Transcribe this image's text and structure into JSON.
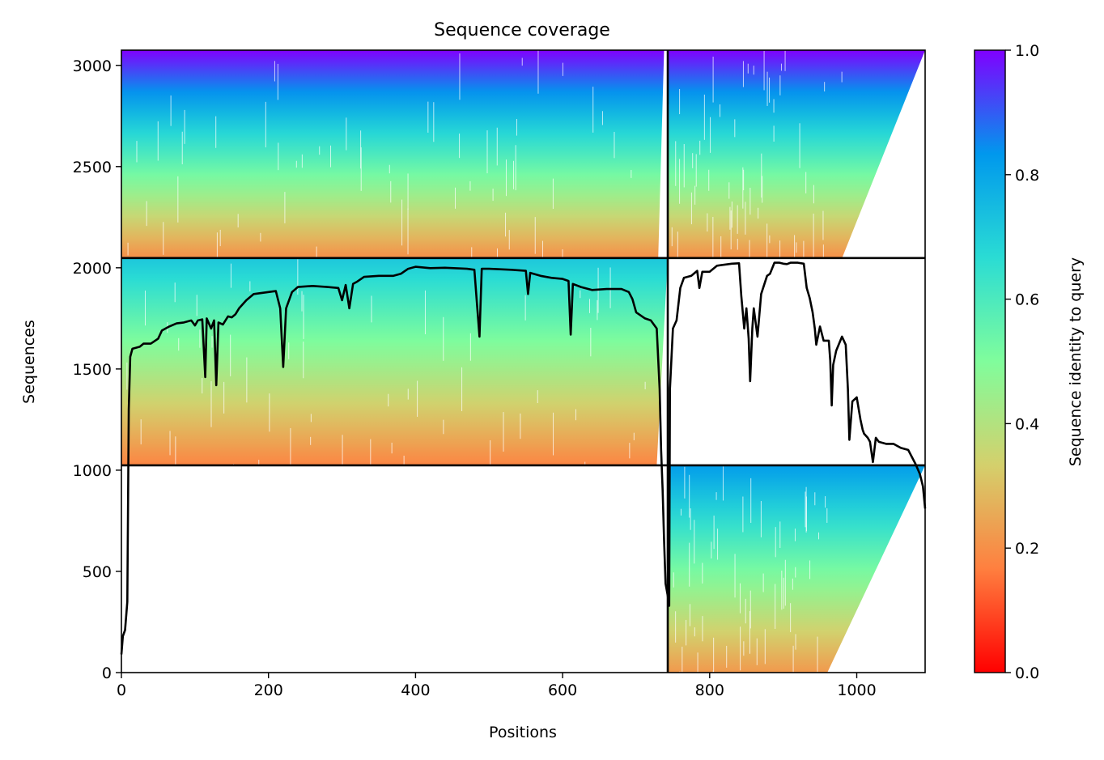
{
  "chart_data": {
    "type": "heatmap",
    "title": "Sequence coverage",
    "xlabel": "Positions",
    "ylabel": "Sequences",
    "xlim": [
      0,
      1093
    ],
    "ylim": [
      0,
      3075
    ],
    "xticks": [
      0,
      200,
      400,
      600,
      800,
      1000
    ],
    "yticks": [
      0,
      500,
      1000,
      1500,
      2000,
      2500,
      3000
    ],
    "colorbar": {
      "label": "Sequence identity to query",
      "range": [
        0.0,
        1.0
      ],
      "ticks": [
        0.0,
        0.2,
        0.4,
        0.6,
        0.8,
        1.0
      ],
      "colormap": "rainbow_r",
      "colors": [
        "#ff0000",
        "#ff7f3f",
        "#d4d06c",
        "#80fd9c",
        "#2adcd4",
        "#0098ed",
        "#8000ff"
      ]
    },
    "grid": false,
    "blocks": [
      {
        "x": [
          0,
          743
        ],
        "y": [
          2048,
          3075
        ],
        "identity_top": 1.0,
        "identity_bottom": 0.2,
        "right_edge_top": 738,
        "right_edge_bottom": 730
      },
      {
        "x": [
          743,
          1093
        ],
        "y": [
          2048,
          3075
        ],
        "identity_top": 1.0,
        "identity_bottom": 0.2,
        "right_edge_top": 1093,
        "right_edge_bottom": 980
      },
      {
        "x": [
          0,
          743
        ],
        "y": [
          1024,
          2048
        ],
        "identity_top": 0.72,
        "identity_bottom": 0.18,
        "right_edge_top": 743,
        "right_edge_bottom": 728
      },
      {
        "x": [
          743,
          1093
        ],
        "y": [
          0,
          1024
        ],
        "identity_top": 0.82,
        "identity_bottom": 0.22,
        "right_edge_top": 1093,
        "right_edge_bottom": 960
      }
    ],
    "dividers": {
      "x": [
        743
      ],
      "y": [
        1024,
        2048
      ]
    },
    "coverage_line": {
      "name": "coverage",
      "color": "#000000",
      "points": [
        [
          0,
          90
        ],
        [
          2,
          180
        ],
        [
          5,
          210
        ],
        [
          8,
          350
        ],
        [
          10,
          1300
        ],
        [
          12,
          1560
        ],
        [
          15,
          1600
        ],
        [
          25,
          1610
        ],
        [
          30,
          1625
        ],
        [
          40,
          1625
        ],
        [
          50,
          1650
        ],
        [
          55,
          1690
        ],
        [
          65,
          1710
        ],
        [
          75,
          1725
        ],
        [
          85,
          1730
        ],
        [
          95,
          1740
        ],
        [
          100,
          1715
        ],
        [
          104,
          1740
        ],
        [
          110,
          1745
        ],
        [
          114,
          1460
        ],
        [
          116,
          1750
        ],
        [
          122,
          1700
        ],
        [
          126,
          1740
        ],
        [
          129,
          1420
        ],
        [
          132,
          1730
        ],
        [
          138,
          1720
        ],
        [
          145,
          1760
        ],
        [
          150,
          1755
        ],
        [
          155,
          1770
        ],
        [
          160,
          1800
        ],
        [
          170,
          1840
        ],
        [
          180,
          1870
        ],
        [
          190,
          1875
        ],
        [
          200,
          1880
        ],
        [
          210,
          1885
        ],
        [
          216,
          1800
        ],
        [
          220,
          1510
        ],
        [
          224,
          1800
        ],
        [
          232,
          1880
        ],
        [
          240,
          1905
        ],
        [
          260,
          1910
        ],
        [
          280,
          1905
        ],
        [
          295,
          1900
        ],
        [
          300,
          1840
        ],
        [
          305,
          1915
        ],
        [
          310,
          1800
        ],
        [
          315,
          1920
        ],
        [
          320,
          1930
        ],
        [
          330,
          1955
        ],
        [
          350,
          1960
        ],
        [
          370,
          1960
        ],
        [
          380,
          1970
        ],
        [
          390,
          1995
        ],
        [
          400,
          2005
        ],
        [
          420,
          1998
        ],
        [
          440,
          2000
        ],
        [
          470,
          1995
        ],
        [
          480,
          1990
        ],
        [
          487,
          1660
        ],
        [
          490,
          1995
        ],
        [
          500,
          1995
        ],
        [
          530,
          1990
        ],
        [
          550,
          1985
        ],
        [
          553,
          1870
        ],
        [
          556,
          1975
        ],
        [
          570,
          1960
        ],
        [
          585,
          1950
        ],
        [
          600,
          1945
        ],
        [
          608,
          1935
        ],
        [
          611,
          1670
        ],
        [
          614,
          1920
        ],
        [
          625,
          1905
        ],
        [
          640,
          1890
        ],
        [
          660,
          1895
        ],
        [
          680,
          1895
        ],
        [
          690,
          1880
        ],
        [
          695,
          1845
        ],
        [
          700,
          1780
        ],
        [
          712,
          1750
        ],
        [
          720,
          1740
        ],
        [
          728,
          1700
        ],
        [
          732,
          1400
        ],
        [
          734,
          1100
        ],
        [
          736,
          900
        ],
        [
          738,
          650
        ],
        [
          740,
          440
        ],
        [
          743,
          380
        ],
        [
          745,
          330
        ],
        [
          746,
          1400
        ],
        [
          750,
          1700
        ],
        [
          755,
          1740
        ],
        [
          760,
          1900
        ],
        [
          765,
          1950
        ],
        [
          775,
          1960
        ],
        [
          783,
          1985
        ],
        [
          786,
          1900
        ],
        [
          790,
          1980
        ],
        [
          800,
          1980
        ],
        [
          810,
          2010
        ],
        [
          830,
          2020
        ],
        [
          840,
          2022
        ],
        [
          843,
          1860
        ],
        [
          847,
          1700
        ],
        [
          850,
          1800
        ],
        [
          853,
          1650
        ],
        [
          855,
          1440
        ],
        [
          858,
          1700
        ],
        [
          860,
          1800
        ],
        [
          865,
          1660
        ],
        [
          870,
          1870
        ],
        [
          878,
          1960
        ],
        [
          882,
          1970
        ],
        [
          888,
          2025
        ],
        [
          895,
          2025
        ],
        [
          900,
          2020
        ],
        [
          905,
          2018
        ],
        [
          910,
          2025
        ],
        [
          920,
          2025
        ],
        [
          928,
          2020
        ],
        [
          932,
          1900
        ],
        [
          936,
          1850
        ],
        [
          940,
          1780
        ],
        [
          943,
          1700
        ],
        [
          945,
          1620
        ],
        [
          950,
          1710
        ],
        [
          955,
          1640
        ],
        [
          960,
          1640
        ],
        [
          962,
          1640
        ],
        [
          964,
          1540
        ],
        [
          966,
          1320
        ],
        [
          968,
          1520
        ],
        [
          972,
          1590
        ],
        [
          980,
          1660
        ],
        [
          985,
          1620
        ],
        [
          988,
          1400
        ],
        [
          990,
          1150
        ],
        [
          994,
          1340
        ],
        [
          1000,
          1360
        ],
        [
          1005,
          1250
        ],
        [
          1008,
          1200
        ],
        [
          1010,
          1180
        ],
        [
          1015,
          1160
        ],
        [
          1018,
          1140
        ],
        [
          1022,
          1040
        ],
        [
          1026,
          1160
        ],
        [
          1030,
          1140
        ],
        [
          1040,
          1130
        ],
        [
          1050,
          1130
        ],
        [
          1060,
          1110
        ],
        [
          1070,
          1100
        ],
        [
          1080,
          1030
        ],
        [
          1086,
          980
        ],
        [
          1090,
          920
        ],
        [
          1093,
          810
        ]
      ]
    }
  }
}
